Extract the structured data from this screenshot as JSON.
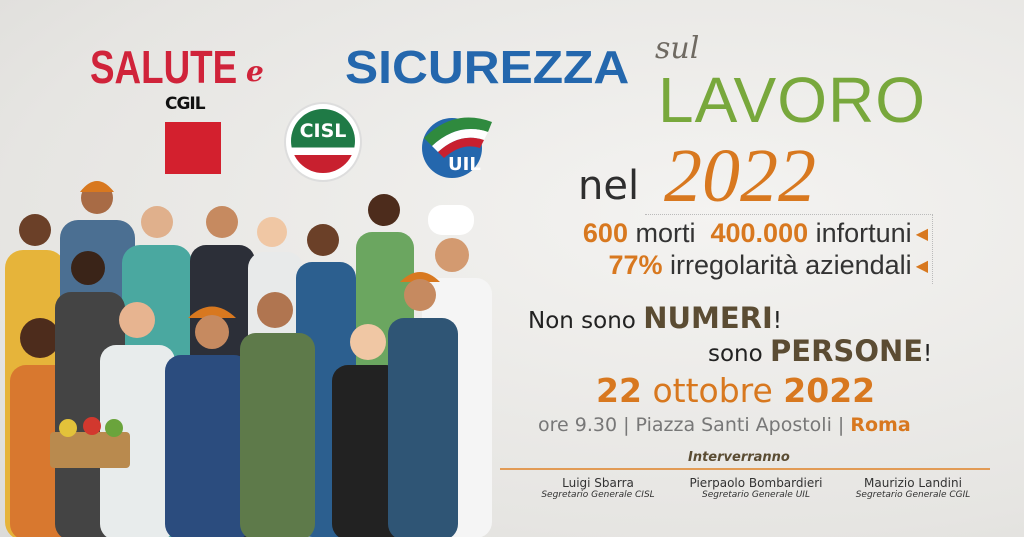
{
  "title": {
    "salute": "SALUTE",
    "e": "e",
    "sicurezza": "SICUREZZA",
    "sul": "sul",
    "lavoro": "LAVORO",
    "nel": "nel",
    "year": "2022"
  },
  "logos": [
    {
      "name": "CGIL",
      "color": "#d3202e"
    },
    {
      "name": "CISL",
      "color": "#1f7a46"
    },
    {
      "name": "UIL",
      "color": "#2467ad"
    }
  ],
  "stats": {
    "deaths_value": "600",
    "deaths_label": "morti",
    "injuries_value": "400.000",
    "injuries_label": "infortuni",
    "irregular_value": "77%",
    "irregular_label": "irregolarità aziendali"
  },
  "slogan": {
    "l1_pre": "Non sono",
    "l1_bold": "NUMERI",
    "l1_end": "!",
    "l2_pre": "sono",
    "l2_bold": "PERSONE",
    "l2_end": "!"
  },
  "event": {
    "day": "22",
    "month": "ottobre",
    "year": "2022",
    "time_place": "ore 9.30 | Piazza Santi Apostoli |",
    "city": "Roma"
  },
  "speakers": {
    "heading": "Interverranno",
    "list": [
      {
        "name": "Luigi Sbarra",
        "role": "Segretario Generale CISL"
      },
      {
        "name": "Pierpaolo Bombardieri",
        "role": "Segretario Generale UIL"
      },
      {
        "name": "Maurizio Landini",
        "role": "Segretario Generale CGIL"
      }
    ]
  },
  "colors": {
    "red": "#d0233a",
    "blue": "#2467ad",
    "green": "#78a83c",
    "orange": "#d8781f",
    "brown": "#5b4c33"
  }
}
